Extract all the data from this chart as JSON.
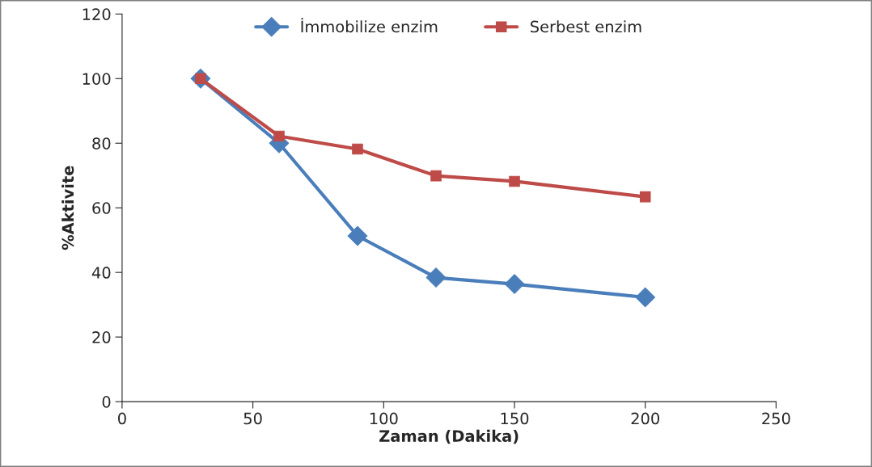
{
  "chart_data": {
    "type": "line",
    "xlabel": "Zaman (Dakika)",
    "ylabel": "%Aktivite",
    "x": [
      30,
      60,
      90,
      120,
      150,
      200
    ],
    "series": [
      {
        "name": "İmmobilize enzim",
        "color": "#4a7ebb",
        "marker": "diamond",
        "values": [
          100,
          80,
          51.3,
          38.4,
          36.4,
          32.3
        ]
      },
      {
        "name": "Serbest enzim",
        "color": "#be4b48",
        "marker": "square",
        "values": [
          100,
          82.2,
          78.2,
          69.9,
          68.2,
          63.4
        ]
      }
    ],
    "xlim": [
      0,
      250
    ],
    "xticks": [
      0,
      50,
      100,
      150,
      200,
      250
    ],
    "ylim": [
      0,
      120
    ],
    "yticks": [
      0,
      20,
      40,
      60,
      80,
      100,
      120
    ],
    "grid": false,
    "legend": "top",
    "line_style": "solid"
  }
}
